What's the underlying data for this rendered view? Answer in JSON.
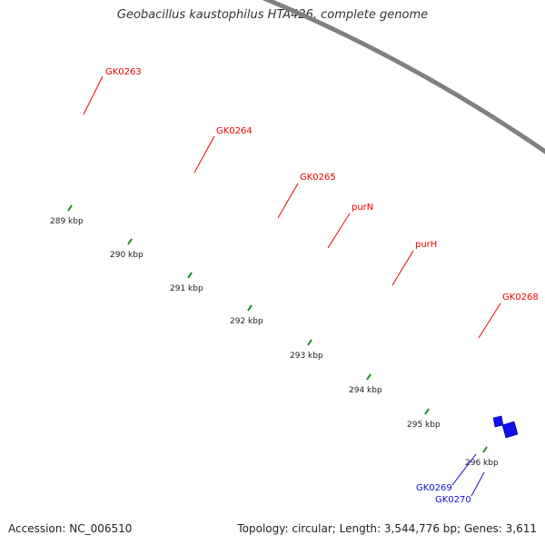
{
  "title": "Geobacillus kaustophilus HTA426, complete genome",
  "footer": {
    "accession": "Accession: NC_006510",
    "stats": "Topology: circular; Length: 3,544,776 bp; Genes: 3,611"
  },
  "colors": {
    "forward_cds": "#16c4f5",
    "reverse_cds": "#ff0000",
    "rna": "#1010ee",
    "backbone": "#808080",
    "ticks": "#1a8a1a",
    "label_red": "#ee0000",
    "label_blue": "#1010cc"
  },
  "scale_labels": [
    "289 kbp",
    "290 kbp",
    "291 kbp",
    "292 kbp",
    "293 kbp",
    "294 kbp",
    "295 kbp",
    "296 kbp"
  ],
  "gene_labels": {
    "forward": [
      "GK0263",
      "GK0264",
      "GK0265",
      "purN",
      "purH",
      "GK0268"
    ],
    "rna": [
      "GK0269",
      "GK0270"
    ]
  }
}
